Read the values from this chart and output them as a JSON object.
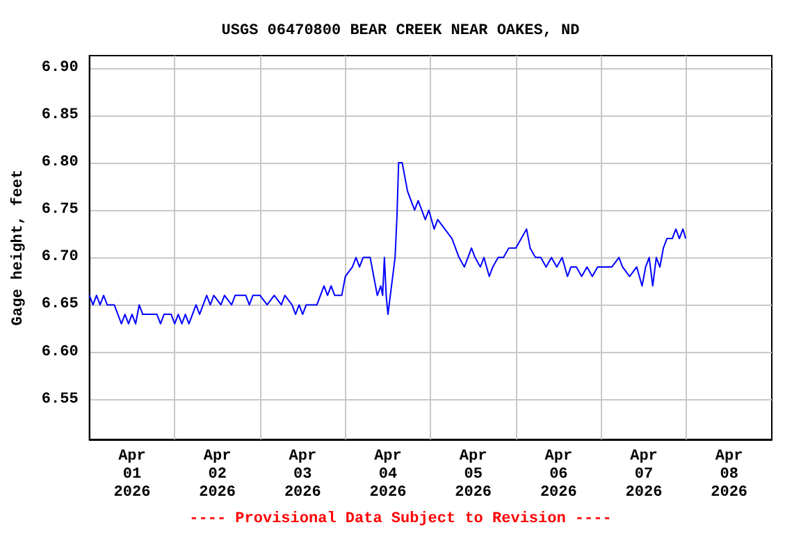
{
  "chart_data": {
    "type": "line",
    "title": "USGS 06470800 BEAR CREEK NEAR OAKES, ND",
    "ylabel": "Gage height, feet",
    "annotations": [
      "---- Provisional Data Subject to Revision ----"
    ],
    "x": [
      "2026-04-01T00:00",
      "2026-04-01T01:00",
      "2026-04-01T02:00",
      "2026-04-01T03:00",
      "2026-04-01T04:00",
      "2026-04-01T05:00",
      "2026-04-01T07:00",
      "2026-04-01T08:00",
      "2026-04-01T09:00",
      "2026-04-01T10:00",
      "2026-04-01T11:00",
      "2026-04-01T12:00",
      "2026-04-01T13:00",
      "2026-04-01T14:00",
      "2026-04-01T15:00",
      "2026-04-01T19:00",
      "2026-04-01T20:00",
      "2026-04-01T21:00",
      "2026-04-01T23:00",
      "2026-04-02T00:00",
      "2026-04-02T01:00",
      "2026-04-02T02:00",
      "2026-04-02T03:00",
      "2026-04-02T04:00",
      "2026-04-02T05:00",
      "2026-04-02T06:00",
      "2026-04-02T07:00",
      "2026-04-02T08:00",
      "2026-04-02T09:00",
      "2026-04-02T10:00",
      "2026-04-02T11:00",
      "2026-04-02T13:00",
      "2026-04-02T14:00",
      "2026-04-02T16:00",
      "2026-04-02T17:00",
      "2026-04-02T20:00",
      "2026-04-02T21:00",
      "2026-04-02T22:00",
      "2026-04-03T00:00",
      "2026-04-03T02:00",
      "2026-04-03T04:00",
      "2026-04-03T06:00",
      "2026-04-03T07:00",
      "2026-04-03T09:00",
      "2026-04-03T10:00",
      "2026-04-03T11:00",
      "2026-04-03T12:00",
      "2026-04-03T13:00",
      "2026-04-03T16:00",
      "2026-04-03T17:00",
      "2026-04-03T18:00",
      "2026-04-03T19:00",
      "2026-04-03T20:00",
      "2026-04-03T21:00",
      "2026-04-03T23:00",
      "2026-04-04T00:00",
      "2026-04-04T02:00",
      "2026-04-04T03:00",
      "2026-04-04T04:00",
      "2026-04-04T05:00",
      "2026-04-04T07:00",
      "2026-04-04T08:00",
      "2026-04-04T09:00",
      "2026-04-04T10:00",
      "2026-04-04T10:30",
      "2026-04-04T11:00",
      "2026-04-04T11:30",
      "2026-04-04T12:00",
      "2026-04-04T13:00",
      "2026-04-04T14:00",
      "2026-04-04T14:30",
      "2026-04-04T15:00",
      "2026-04-04T16:00",
      "2026-04-04T16:30",
      "2026-04-04T17:30",
      "2026-04-04T18:30",
      "2026-04-04T19:30",
      "2026-04-04T20:30",
      "2026-04-04T21:30",
      "2026-04-04T22:30",
      "2026-04-04T23:30",
      "2026-04-05T01:00",
      "2026-04-05T02:00",
      "2026-04-05T04:00",
      "2026-04-05T06:00",
      "2026-04-05T07:00",
      "2026-04-05T08:00",
      "2026-04-05T09:30",
      "2026-04-05T10:30",
      "2026-04-05T11:30",
      "2026-04-05T12:30",
      "2026-04-05T14:00",
      "2026-04-05T15:00",
      "2026-04-05T16:30",
      "2026-04-05T17:30",
      "2026-04-05T19:00",
      "2026-04-05T20:30",
      "2026-04-05T22:00",
      "2026-04-06T00:00",
      "2026-04-06T01:30",
      "2026-04-06T03:00",
      "2026-04-06T04:00",
      "2026-04-06T05:30",
      "2026-04-06T07:00",
      "2026-04-06T08:30",
      "2026-04-06T10:00",
      "2026-04-06T11:30",
      "2026-04-06T13:00",
      "2026-04-06T14:30",
      "2026-04-06T15:30",
      "2026-04-06T17:00",
      "2026-04-06T18:30",
      "2026-04-06T20:00",
      "2026-04-06T21:30",
      "2026-04-06T23:00",
      "2026-04-07T01:00",
      "2026-04-07T03:00",
      "2026-04-07T05:00",
      "2026-04-07T06:00",
      "2026-04-07T08:00",
      "2026-04-07T10:00",
      "2026-04-07T11:30",
      "2026-04-07T12:30",
      "2026-04-07T13:30",
      "2026-04-07T14:30",
      "2026-04-07T15:30",
      "2026-04-07T16:30",
      "2026-04-07T17:30",
      "2026-04-07T18:30",
      "2026-04-07T20:00",
      "2026-04-07T21:00",
      "2026-04-07T22:00",
      "2026-04-07T23:00",
      "2026-04-07T23:45"
    ],
    "series": [
      {
        "color": "#0000ff",
        "values": [
          6.66,
          6.65,
          6.66,
          6.65,
          6.66,
          6.65,
          6.65,
          6.64,
          6.63,
          6.64,
          6.63,
          6.64,
          6.63,
          6.65,
          6.64,
          6.64,
          6.63,
          6.64,
          6.64,
          6.63,
          6.64,
          6.63,
          6.64,
          6.63,
          6.64,
          6.65,
          6.64,
          6.65,
          6.66,
          6.65,
          6.66,
          6.65,
          6.66,
          6.65,
          6.66,
          6.66,
          6.65,
          6.66,
          6.66,
          6.65,
          6.66,
          6.65,
          6.66,
          6.65,
          6.64,
          6.65,
          6.64,
          6.65,
          6.65,
          6.66,
          6.67,
          6.66,
          6.67,
          6.66,
          6.66,
          6.68,
          6.69,
          6.7,
          6.69,
          6.7,
          6.7,
          6.68,
          6.66,
          6.67,
          6.66,
          6.7,
          6.66,
          6.64,
          6.67,
          6.7,
          6.74,
          6.8,
          6.8,
          6.79,
          6.77,
          6.76,
          6.75,
          6.76,
          6.75,
          6.74,
          6.75,
          6.73,
          6.74,
          6.73,
          6.72,
          6.71,
          6.7,
          6.69,
          6.7,
          6.71,
          6.7,
          6.69,
          6.7,
          6.68,
          6.69,
          6.7,
          6.7,
          6.71,
          6.71,
          6.72,
          6.73,
          6.71,
          6.7,
          6.7,
          6.69,
          6.7,
          6.69,
          6.7,
          6.68,
          6.69,
          6.69,
          6.68,
          6.69,
          6.68,
          6.69,
          6.69,
          6.69,
          6.7,
          6.69,
          6.68,
          6.69,
          6.67,
          6.69,
          6.7,
          6.67,
          6.7,
          6.69,
          6.71,
          6.72,
          6.72,
          6.73,
          6.72,
          6.73,
          6.72
        ]
      }
    ],
    "xlim": [
      "2026-04-01T00:00",
      "2026-04-09T00:00"
    ],
    "xticks": [
      {
        "value": "2026-04-01T12:00",
        "label": "Apr\n01\n2026"
      },
      {
        "value": "2026-04-02T00:00",
        "label": null
      },
      {
        "value": "2026-04-02T12:00",
        "label": "Apr\n02\n2026"
      },
      {
        "value": "2026-04-03T00:00",
        "label": null
      },
      {
        "value": "2026-04-03T12:00",
        "label": "Apr\n03\n2026"
      },
      {
        "value": "2026-04-04T00:00",
        "label": null
      },
      {
        "value": "2026-04-04T12:00",
        "label": "Apr\n04\n2026"
      },
      {
        "value": "2026-04-05T00:00",
        "label": null
      },
      {
        "value": "2026-04-05T12:00",
        "label": "Apr\n05\n2026"
      },
      {
        "value": "2026-04-06T00:00",
        "label": null
      },
      {
        "value": "2026-04-06T12:00",
        "label": "Apr\n06\n2026"
      },
      {
        "value": "2026-04-07T00:00",
        "label": null
      },
      {
        "value": "2026-04-07T12:00",
        "label": "Apr\n07\n2026"
      },
      {
        "value": "2026-04-08T00:00",
        "label": null
      },
      {
        "value": "2026-04-08T12:00",
        "label": "Apr\n08\n2026"
      }
    ],
    "ylim": [
      6.508,
      6.913
    ],
    "yticks": [
      {
        "value": 6.55,
        "label": "6.55"
      },
      {
        "value": 6.6,
        "label": "6.60"
      },
      {
        "value": 6.65,
        "label": "6.65"
      },
      {
        "value": 6.7,
        "label": "6.70"
      },
      {
        "value": 6.75,
        "label": "6.75"
      },
      {
        "value": 6.8,
        "label": "6.80"
      },
      {
        "value": 6.85,
        "label": "6.85"
      },
      {
        "value": 6.9,
        "label": "6.90"
      }
    ],
    "grid": true,
    "marker": "none",
    "line_style": "solid"
  }
}
